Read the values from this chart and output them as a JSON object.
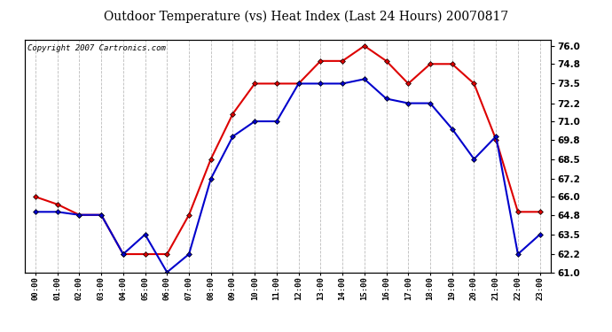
{
  "title": "Outdoor Temperature (vs) Heat Index (Last 24 Hours) 20070817",
  "copyright": "Copyright 2007 Cartronics.com",
  "x_labels": [
    "00:00",
    "01:00",
    "02:00",
    "03:00",
    "04:00",
    "05:00",
    "06:00",
    "07:00",
    "08:00",
    "09:00",
    "10:00",
    "11:00",
    "12:00",
    "13:00",
    "14:00",
    "15:00",
    "16:00",
    "17:00",
    "18:00",
    "19:00",
    "20:00",
    "21:00",
    "22:00",
    "23:00"
  ],
  "heat_index": [
    66.0,
    65.5,
    64.8,
    64.8,
    62.2,
    62.2,
    62.2,
    64.8,
    68.5,
    71.5,
    73.5,
    73.5,
    73.5,
    75.0,
    75.0,
    76.0,
    75.0,
    73.5,
    74.8,
    74.8,
    73.5,
    69.8,
    65.0,
    65.0
  ],
  "temperature": [
    65.0,
    65.0,
    64.8,
    64.8,
    62.2,
    63.5,
    61.0,
    62.2,
    67.2,
    70.0,
    71.0,
    71.0,
    73.5,
    73.5,
    73.5,
    73.8,
    72.5,
    72.2,
    72.2,
    70.5,
    68.5,
    70.0,
    62.2,
    63.5
  ],
  "heat_index_color": "#dd0000",
  "temperature_color": "#0000cc",
  "ylim_min": 61.0,
  "ylim_max": 76.4,
  "yticks": [
    61.0,
    62.2,
    63.5,
    64.8,
    66.0,
    67.2,
    68.5,
    69.8,
    71.0,
    72.2,
    73.5,
    74.8,
    76.0
  ],
  "bg_color": "#ffffff",
  "plot_bg_color": "#ffffff",
  "grid_color": "#bbbbbb",
  "marker": "D",
  "marker_size": 3,
  "line_width": 1.5,
  "title_fontsize": 10,
  "copyright_fontsize": 6.5
}
